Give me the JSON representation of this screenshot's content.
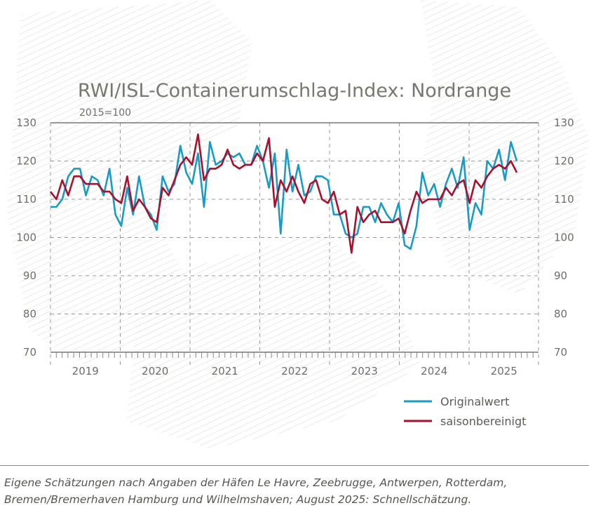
{
  "chart_data": {
    "type": "line",
    "title": "RWI/ISL-Containerumschlag-Index: Nordrange",
    "subtitle": "2015=100",
    "ylim": [
      70,
      130
    ],
    "yticks": [
      70,
      80,
      90,
      100,
      110,
      120,
      130
    ],
    "x_start": "2019-01",
    "x_end": "2025-08",
    "year_labels": [
      "2019",
      "2020",
      "2021",
      "2022",
      "2023",
      "2024",
      "2025"
    ],
    "grid": true,
    "legend_placement": "bottom-right",
    "series": [
      {
        "name": "Originalwert",
        "color": "#1a9bc6",
        "values": [
          108,
          108,
          110,
          116,
          118,
          118,
          111,
          116,
          115,
          111,
          118,
          106,
          103,
          113,
          106,
          116,
          108,
          106,
          102,
          116,
          112,
          114,
          124,
          117,
          114,
          122,
          108,
          125,
          119,
          120,
          122,
          121,
          122,
          119,
          119,
          124,
          120,
          113,
          122,
          101,
          123,
          112,
          119,
          111,
          112,
          116,
          116,
          115,
          106,
          106,
          101,
          100,
          101,
          108,
          108,
          104,
          109,
          106,
          104,
          109,
          98,
          97,
          103,
          117,
          111,
          114,
          108,
          114,
          118,
          113,
          121,
          102,
          109,
          106,
          120,
          118,
          123,
          115,
          125,
          120
        ]
      },
      {
        "name": "saisonbereinigt",
        "color": "#a8112e",
        "values": [
          112,
          110,
          115,
          111,
          116,
          116,
          114,
          114,
          114,
          112,
          112,
          110,
          109,
          116,
          107,
          110,
          108,
          105,
          104,
          113,
          111,
          115,
          119,
          121,
          119,
          127,
          115,
          118,
          118,
          119,
          123,
          119,
          118,
          119,
          119,
          122,
          120,
          126,
          108,
          115,
          112,
          116,
          112,
          109,
          114,
          115,
          110,
          109,
          112,
          106,
          107,
          96,
          108,
          104,
          106,
          107,
          104,
          104,
          104,
          105,
          101,
          107,
          112,
          109,
          110,
          110,
          110,
          113,
          111,
          114,
          115,
          109,
          115,
          113,
          116,
          118,
          119,
          118,
          120,
          117
        ]
      }
    ]
  },
  "source": "Eigene Schätzungen nach Angaben der Häfen Le Havre, Zeebrugge, Antwerpen, Rotterdam, Bremen/Bremerhaven Hamburg und Wilhelmshaven; August 2025: Schnellschätzung."
}
